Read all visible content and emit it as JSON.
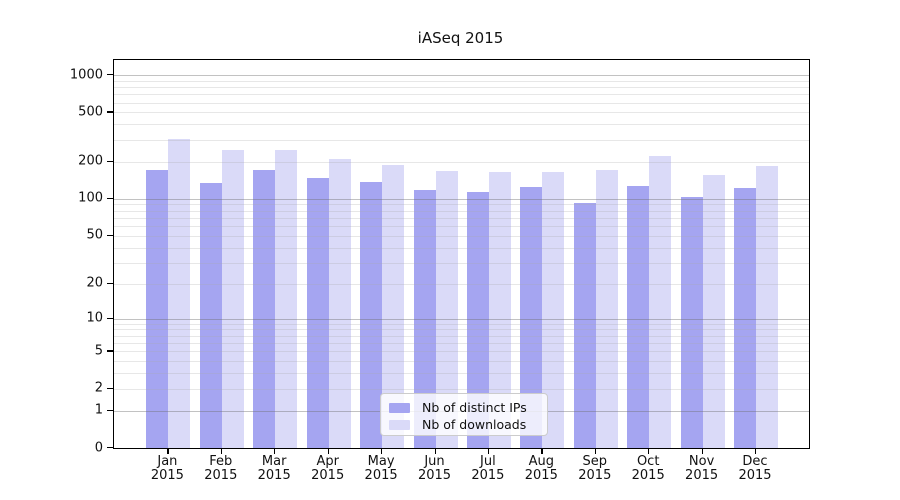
{
  "chart_data": {
    "type": "bar",
    "title": "iASeq 2015",
    "scale": "log1p",
    "grid": true,
    "legend_position": "inside-bottom-center",
    "x_axis": {
      "months": [
        "Jan",
        "Feb",
        "Mar",
        "Apr",
        "May",
        "Jun",
        "Jul",
        "Aug",
        "Sep",
        "Oct",
        "Nov",
        "Dec"
      ],
      "year": "2015"
    },
    "y_axis": {
      "tick_values": [
        1000,
        500,
        200,
        100,
        50,
        20,
        10,
        5,
        2,
        1,
        0
      ],
      "tick_labels": [
        "1000",
        "500",
        "200",
        "100",
        "50",
        "20",
        "10",
        "5",
        "2",
        "1",
        "0"
      ],
      "minor_gridline_values": [
        2,
        3,
        4,
        5,
        6,
        7,
        8,
        9,
        20,
        30,
        40,
        50,
        60,
        70,
        80,
        90,
        200,
        300,
        400,
        500,
        600,
        700,
        800,
        900
      ],
      "major_gridline_values": [
        1,
        10,
        100,
        1000
      ],
      "ylim": [
        0,
        1300
      ]
    },
    "series": [
      {
        "name": "Nb of distinct IPs",
        "color": "#a5a5f1",
        "values": [
          171,
          134,
          171,
          147,
          137,
          118,
          114,
          125,
          92,
          126,
          103,
          122
        ]
      },
      {
        "name": "Nb of downloads",
        "color": "#dadaf8",
        "values": [
          305,
          248,
          247,
          210,
          188,
          168,
          165,
          165,
          171,
          224,
          156,
          184
        ]
      }
    ]
  }
}
